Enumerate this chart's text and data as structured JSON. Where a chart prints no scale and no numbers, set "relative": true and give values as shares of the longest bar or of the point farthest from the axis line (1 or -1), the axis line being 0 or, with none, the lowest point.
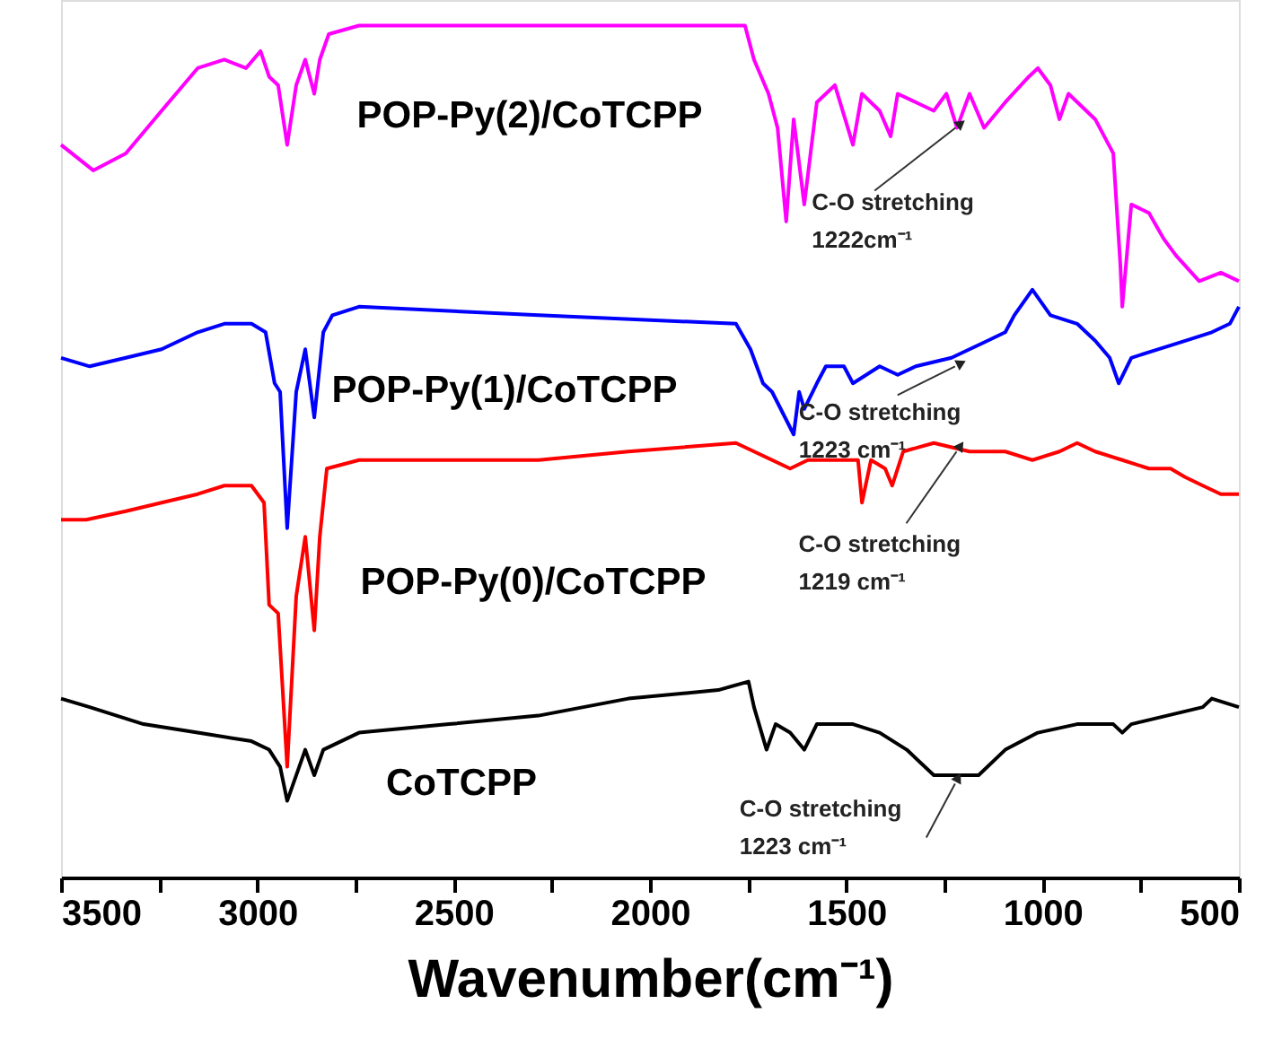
{
  "chart_data": {
    "type": "line",
    "relative": true,
    "xlabel": "Wavenumber(cm⁻¹)",
    "xlim": [
      3500,
      500
    ],
    "xticks": [
      3500,
      {
        "value": 3250,
        "label": null
      },
      3000,
      {
        "value": 2750,
        "label": null
      },
      2500,
      {
        "value": 2250,
        "label": null
      },
      2000,
      {
        "value": 1750,
        "label": null
      },
      1500,
      {
        "value": 1250,
        "label": null
      },
      1000,
      {
        "value": 750,
        "label": null
      },
      500
    ],
    "grid": false,
    "marker": "none",
    "line_style": "solid",
    "series": [
      {
        "name": "POP-Py(2)/CoTCPP",
        "color": "#ff00ff",
        "x": [
          3500,
          3418,
          3335,
          3244,
          3152,
          3084,
          3029,
          2992,
          2970,
          2947,
          2924,
          2901,
          2878,
          2855,
          2841,
          2818,
          2741,
          2284,
          1758,
          1735,
          1698,
          1675,
          1653,
          1634,
          1607,
          1575,
          1529,
          1483,
          1460,
          1415,
          1387,
          1369,
          1323,
          1277,
          1245,
          1218,
          1186,
          1149,
          1095,
          1035,
          1012,
          980,
          957,
          934,
          866,
          820,
          802,
          797,
          774,
          729,
          692,
          660,
          601,
          546,
          500
        ],
        "values": [
          0.86,
          0.83,
          0.85,
          0.9,
          0.95,
          0.96,
          0.95,
          0.97,
          0.94,
          0.93,
          0.86,
          0.93,
          0.96,
          0.92,
          0.96,
          0.99,
          1.0,
          1.0,
          1.0,
          0.96,
          0.92,
          0.88,
          0.77,
          0.89,
          0.79,
          0.91,
          0.93,
          0.86,
          0.92,
          0.9,
          0.87,
          0.92,
          0.91,
          0.9,
          0.92,
          0.88,
          0.92,
          0.88,
          0.91,
          0.94,
          0.95,
          0.93,
          0.89,
          0.92,
          0.89,
          0.85,
          0.72,
          0.67,
          0.79,
          0.78,
          0.75,
          0.73,
          0.7,
          0.71,
          0.7
        ]
      },
      {
        "name": "POP-Py(1)/CoTCPP",
        "color": "#0000ff",
        "x": [
          3500,
          3427,
          3335,
          3244,
          3152,
          3084,
          3015,
          2979,
          2956,
          2942,
          2924,
          2901,
          2878,
          2855,
          2832,
          2809,
          2741,
          2284,
          1781,
          1744,
          1712,
          1689,
          1634,
          1620,
          1607,
          1575,
          1552,
          1506,
          1483,
          1415,
          1369,
          1323,
          1232,
          1140,
          1095,
          1072,
          1026,
          980,
          912,
          866,
          829,
          806,
          774,
          706,
          637,
          569,
          523,
          500
        ],
        "values": [
          0.61,
          0.6,
          0.61,
          0.62,
          0.64,
          0.65,
          0.65,
          0.64,
          0.58,
          0.57,
          0.41,
          0.57,
          0.62,
          0.54,
          0.64,
          0.66,
          0.67,
          0.66,
          0.65,
          0.62,
          0.58,
          0.57,
          0.52,
          0.57,
          0.55,
          0.58,
          0.6,
          0.6,
          0.58,
          0.6,
          0.59,
          0.6,
          0.61,
          0.63,
          0.64,
          0.66,
          0.69,
          0.66,
          0.65,
          0.63,
          0.61,
          0.58,
          0.61,
          0.62,
          0.63,
          0.64,
          0.65,
          0.67
        ]
      },
      {
        "name": "POP-Py(0)/CoTCPP",
        "color": "#ff0000",
        "x": [
          3500,
          3436,
          3335,
          3244,
          3152,
          3084,
          3015,
          2983,
          2970,
          2947,
          2924,
          2901,
          2878,
          2855,
          2841,
          2823,
          2741,
          2284,
          2055,
          1781,
          1735,
          1643,
          1598,
          1529,
          1470,
          1460,
          1437,
          1401,
          1383,
          1355,
          1277,
          1186,
          1095,
          1026,
          957,
          912,
          866,
          797,
          729,
          674,
          637,
          592,
          546,
          500
        ],
        "values": [
          0.42,
          0.42,
          0.43,
          0.44,
          0.45,
          0.46,
          0.46,
          0.44,
          0.32,
          0.31,
          0.13,
          0.33,
          0.4,
          0.29,
          0.4,
          0.48,
          0.49,
          0.49,
          0.5,
          0.51,
          0.5,
          0.48,
          0.49,
          0.49,
          0.49,
          0.44,
          0.49,
          0.48,
          0.46,
          0.5,
          0.51,
          0.5,
          0.5,
          0.49,
          0.5,
          0.51,
          0.5,
          0.49,
          0.48,
          0.48,
          0.47,
          0.46,
          0.45,
          0.45
        ]
      },
      {
        "name": "CoTCPP",
        "color": "#000000",
        "x": [
          3500,
          3427,
          3290,
          3152,
          3015,
          2970,
          2942,
          2924,
          2901,
          2878,
          2855,
          2832,
          2741,
          2512,
          2284,
          2055,
          1826,
          1749,
          1735,
          1703,
          1680,
          1643,
          1607,
          1575,
          1483,
          1415,
          1346,
          1277,
          1223,
          1163,
          1095,
          1012,
          912,
          820,
          797,
          774,
          683,
          592,
          569,
          500
        ],
        "values": [
          0.21,
          0.2,
          0.18,
          0.17,
          0.16,
          0.15,
          0.13,
          0.09,
          0.12,
          0.15,
          0.12,
          0.15,
          0.17,
          0.18,
          0.19,
          0.21,
          0.22,
          0.23,
          0.2,
          0.15,
          0.18,
          0.17,
          0.15,
          0.18,
          0.18,
          0.17,
          0.15,
          0.12,
          0.12,
          0.12,
          0.15,
          0.17,
          0.18,
          0.18,
          0.17,
          0.18,
          0.19,
          0.2,
          0.21,
          0.2
        ]
      }
    ],
    "annotations": [
      {
        "text": "C-O stretching\n1222cm⁻¹",
        "x": 1222,
        "y": 0.88
      },
      {
        "text": "C-O stretching\n1223 cm⁻¹",
        "x": 1223,
        "y": 0.6
      },
      {
        "text": "C-O stretching\n1219 cm⁻¹",
        "x": 1219,
        "y": 0.5
      },
      {
        "text": "C-O stretching\n1223 cm⁻¹",
        "x": 1223,
        "y": 0.11
      }
    ]
  }
}
